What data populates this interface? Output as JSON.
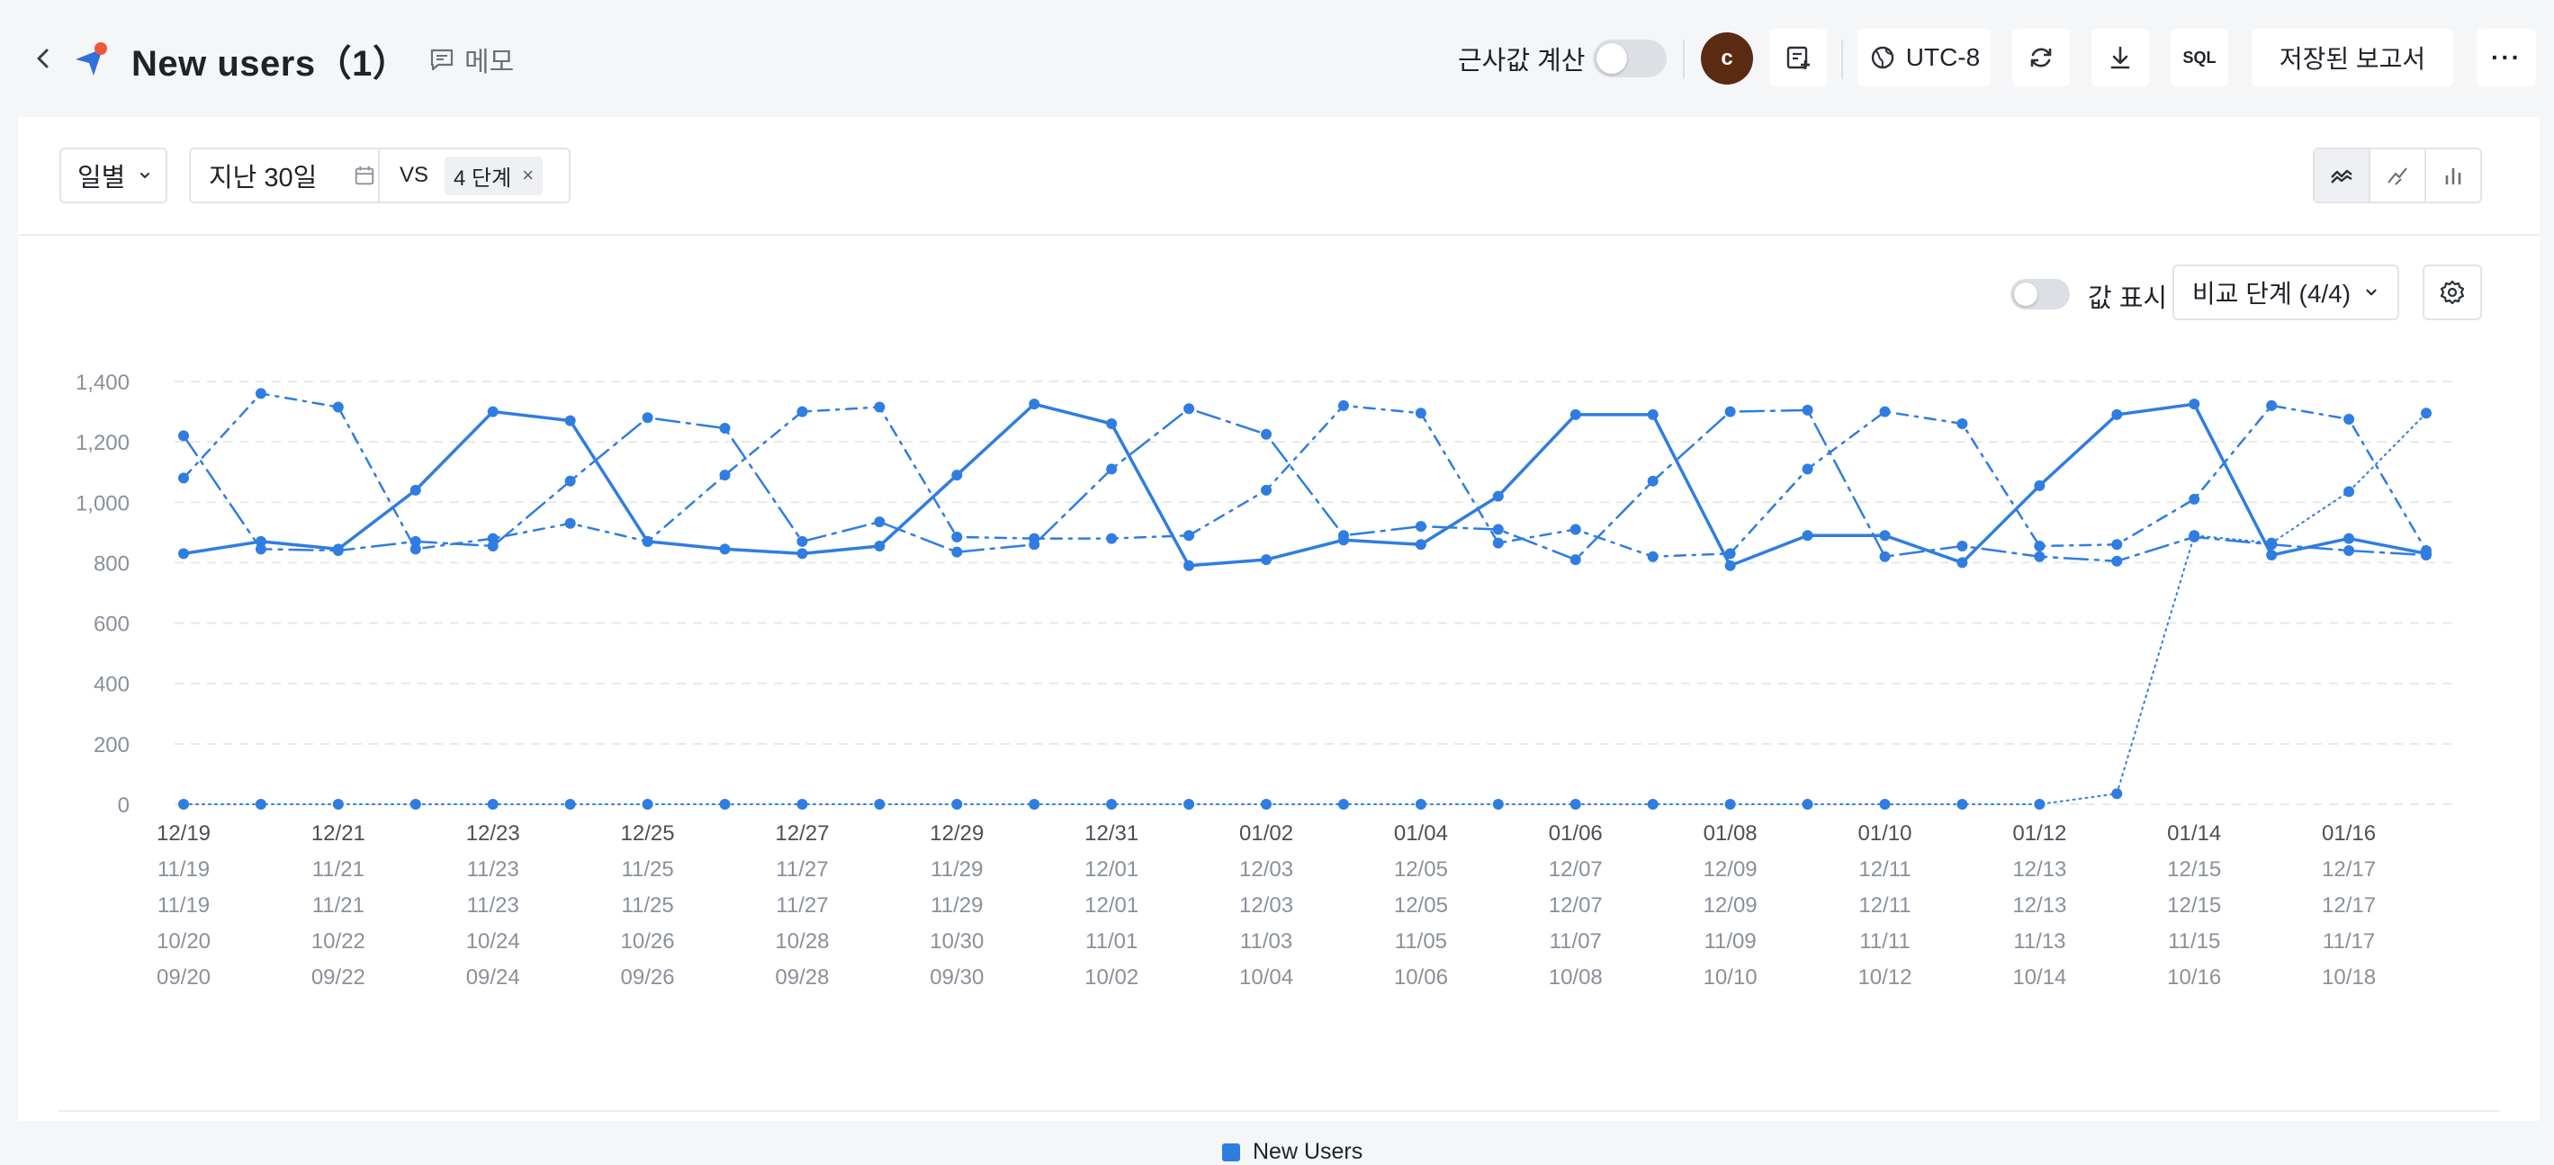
{
  "header": {
    "title": "New users（1）",
    "memo_label": "메모",
    "approx_label": "근사값 계산",
    "avatar_letter": "c",
    "timezone_label": "UTC-8",
    "sql_label": "SQL",
    "saved_report_label": "저장된 보고서",
    "more_label": "···"
  },
  "controls": {
    "interval_label": "일별",
    "date_range_label": "지난 30일",
    "vs_label": "VS",
    "compare_chip_label": "4 단계",
    "chip_close": "×",
    "show_values_label": "값 표시",
    "compare_dropdown_label": "비교 단계 (4/4)"
  },
  "legend": {
    "label": "New Users"
  },
  "colors": {
    "accent": "#2f7de1",
    "grid": "#e6e8ec",
    "axis_text": "#8a9099"
  },
  "chart_data": {
    "type": "line",
    "title": "",
    "ylim": [
      0,
      1400
    ],
    "y_ticks": [
      "1,400",
      "1,200",
      "1,000",
      "800",
      "600",
      "400",
      "200",
      "0"
    ],
    "y_tick_values": [
      1400,
      1200,
      1000,
      800,
      600,
      400,
      200,
      0
    ],
    "x_label_rows": [
      [
        "12/19",
        "12/21",
        "12/23",
        "12/25",
        "12/27",
        "12/29",
        "12/31",
        "01/02",
        "01/04",
        "01/06",
        "01/08",
        "01/10",
        "01/12",
        "01/14",
        "01/16"
      ],
      [
        "11/19",
        "11/21",
        "11/23",
        "11/25",
        "11/27",
        "11/29",
        "12/01",
        "12/03",
        "12/05",
        "12/07",
        "12/09",
        "12/11",
        "12/13",
        "12/15",
        "12/17"
      ],
      [
        "11/19",
        "11/21",
        "11/23",
        "11/25",
        "11/27",
        "11/29",
        "12/01",
        "12/03",
        "12/05",
        "12/07",
        "12/09",
        "12/11",
        "12/13",
        "12/15",
        "12/17"
      ],
      [
        "10/20",
        "10/22",
        "10/24",
        "10/26",
        "10/28",
        "10/30",
        "11/01",
        "11/03",
        "11/05",
        "11/07",
        "11/09",
        "11/11",
        "11/13",
        "11/15",
        "11/17"
      ],
      [
        "09/20",
        "09/22",
        "09/24",
        "09/26",
        "09/28",
        "09/30",
        "10/02",
        "10/04",
        "10/06",
        "10/08",
        "10/10",
        "10/12",
        "10/14",
        "10/16",
        "10/18"
      ]
    ],
    "x": [
      "12/19",
      "12/20",
      "12/21",
      "12/22",
      "12/23",
      "12/24",
      "12/25",
      "12/26",
      "12/27",
      "12/28",
      "12/29",
      "12/30",
      "12/31",
      "01/01",
      "01/02",
      "01/03",
      "01/04",
      "01/05",
      "01/06",
      "01/07",
      "01/08",
      "01/09",
      "01/10",
      "01/11",
      "01/12",
      "01/13",
      "01/14",
      "01/15",
      "01/16",
      "01/17"
    ],
    "series": [
      {
        "name": "New Users",
        "style": "solid",
        "width": 3.5,
        "values": [
          830,
          870,
          845,
          1040,
          1300,
          1270,
          870,
          845,
          830,
          855,
          1090,
          1325,
          1260,
          790,
          810,
          875,
          860,
          1020,
          1290,
          1290,
          790,
          890,
          890,
          800,
          1055,
          1290,
          1325,
          825,
          880,
          830
        ]
      },
      {
        "name": "",
        "style": "dashdot-long",
        "width": 2.5,
        "values": [
          1220,
          845,
          840,
          870,
          855,
          1070,
          1280,
          1245,
          870,
          935,
          835,
          860,
          1110,
          1310,
          1225,
          890,
          920,
          910,
          810,
          1070,
          1300,
          1305,
          820,
          855,
          820,
          805,
          885,
          860,
          840,
          825
        ]
      },
      {
        "name": "",
        "style": "dashdot",
        "width": 2.5,
        "values": [
          1080,
          1360,
          1315,
          845,
          880,
          930,
          870,
          1090,
          1300,
          1315,
          885,
          880,
          880,
          890,
          1040,
          1320,
          1295,
          865,
          910,
          820,
          830,
          1110,
          1300,
          1260,
          855,
          860,
          1010,
          1320,
          1275,
          840
        ]
      },
      {
        "name": "",
        "style": "dotted",
        "width": 2,
        "values": [
          0,
          0,
          0,
          0,
          0,
          0,
          0,
          0,
          0,
          0,
          0,
          0,
          0,
          0,
          0,
          0,
          0,
          0,
          0,
          0,
          0,
          0,
          0,
          0,
          0,
          35,
          890,
          865,
          1035,
          1295
        ]
      }
    ]
  }
}
